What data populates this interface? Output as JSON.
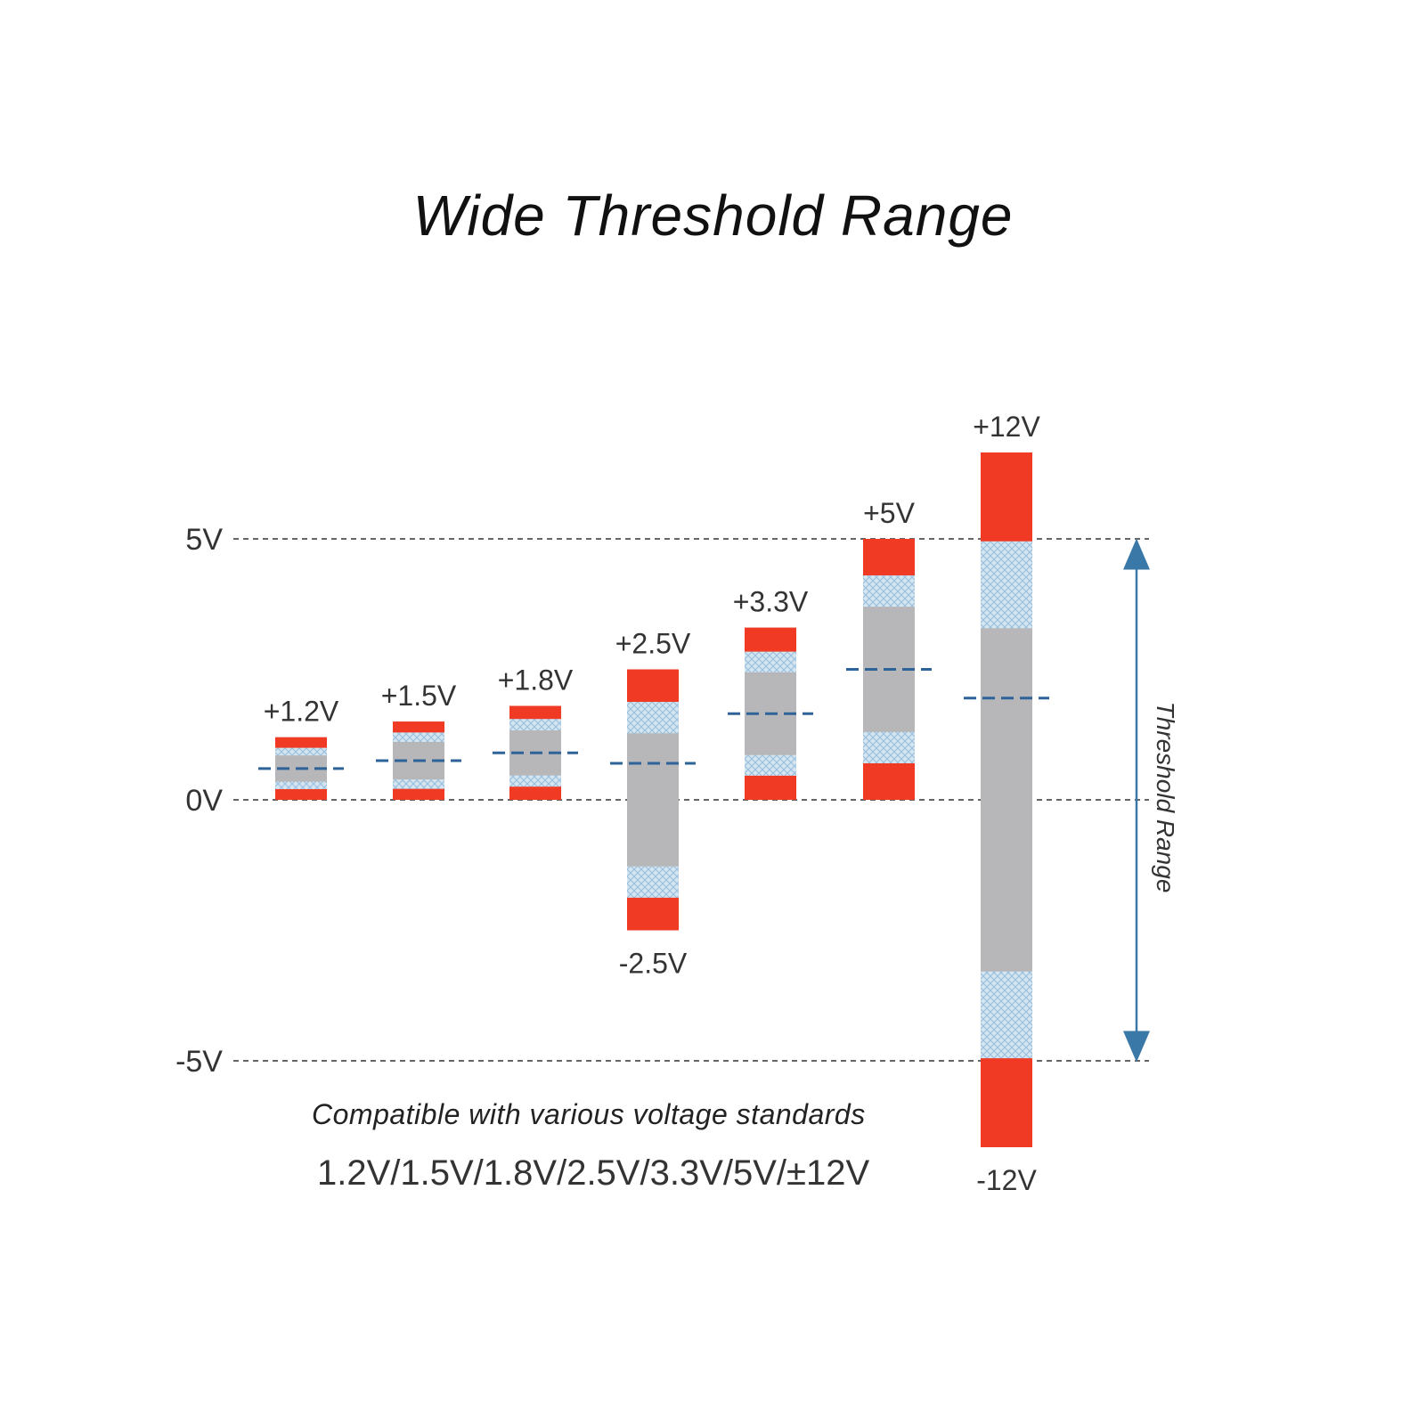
{
  "title": "Wide Threshold Range",
  "reference_levels": [
    {
      "label": "5V",
      "value": 5
    },
    {
      "label": "0V",
      "value": 0
    },
    {
      "label": "-5V",
      "value": -5
    }
  ],
  "bars": [
    {
      "top_label": "+1.2V",
      "bottom_label": "",
      "high": 1.2,
      "low": 0
    },
    {
      "top_label": "+1.5V",
      "bottom_label": "",
      "high": 1.5,
      "low": 0
    },
    {
      "top_label": "+1.8V",
      "bottom_label": "",
      "high": 1.8,
      "low": 0
    },
    {
      "top_label": "+2.5V",
      "bottom_label": "-2.5V",
      "high": 2.5,
      "low": -2.5
    },
    {
      "top_label": "+3.3V",
      "bottom_label": "",
      "high": 3.3,
      "low": 0
    },
    {
      "top_label": "+5V",
      "bottom_label": "",
      "high": 5,
      "low": 0
    },
    {
      "top_label": "+12V",
      "bottom_label": "-12V",
      "high": 12,
      "low": -12
    }
  ],
  "axis_title": "Threshold Range",
  "subtitle": "Compatible with various voltage standards",
  "standards": "1.2V/1.5V/1.8V/2.5V/3.3V/5V/±12V",
  "colors": {
    "red": "#f03a24",
    "gray": "#b7b7b9",
    "hatch": "#d7e6f2",
    "threshold_line": "#2e6399",
    "arrow": "#3a78a8",
    "ref_line": "#666666"
  }
}
